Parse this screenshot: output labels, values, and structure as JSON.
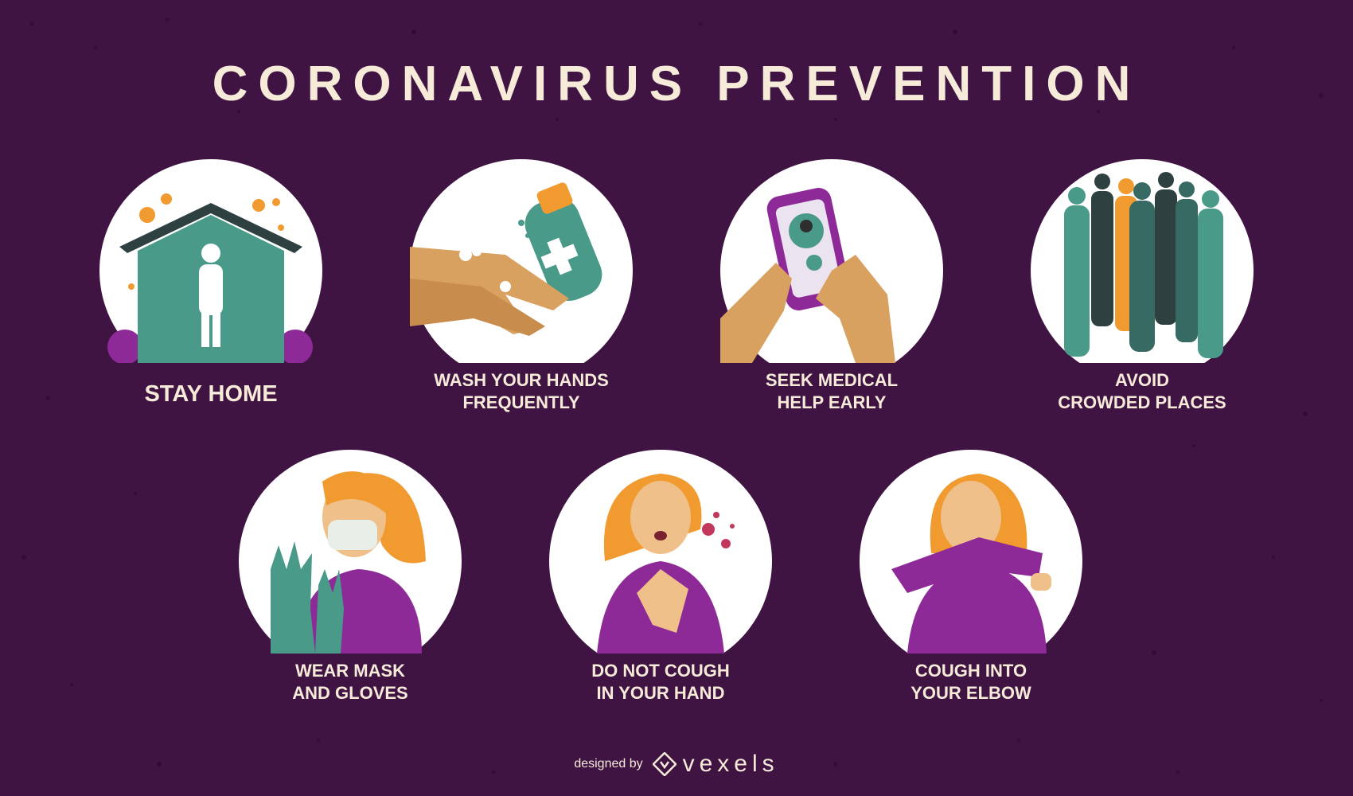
{
  "poster": {
    "title": "CORONAVIRUS PREVENTION",
    "colors": {
      "background": "#3f1342",
      "text": "#f6ead9",
      "teal": "#4a9a8a",
      "orange": "#f19a2f",
      "purple": "#8e2a98",
      "skin": "#d8a15f"
    }
  },
  "tips": [
    {
      "label": "STAY HOME",
      "icon": "house-icon"
    },
    {
      "label": "WASH YOUR HANDS\nFREQUENTLY",
      "icon": "hand-washing-icon"
    },
    {
      "label": "SEEK MEDICAL\nHELP EARLY",
      "icon": "phone-doctor-icon"
    },
    {
      "label": "AVOID\nCROWDED PLACES",
      "icon": "crowd-icon"
    },
    {
      "label": "WEAR MASK\nAND GLOVES",
      "icon": "mask-gloves-icon"
    },
    {
      "label": "DO NOT COUGH\nIN YOUR HAND",
      "icon": "cough-hand-icon"
    },
    {
      "label": "COUGH INTO\nYOUR ELBOW",
      "icon": "cough-elbow-icon"
    }
  ],
  "footer": {
    "designed_by": "designed by",
    "brand": "vexels"
  }
}
